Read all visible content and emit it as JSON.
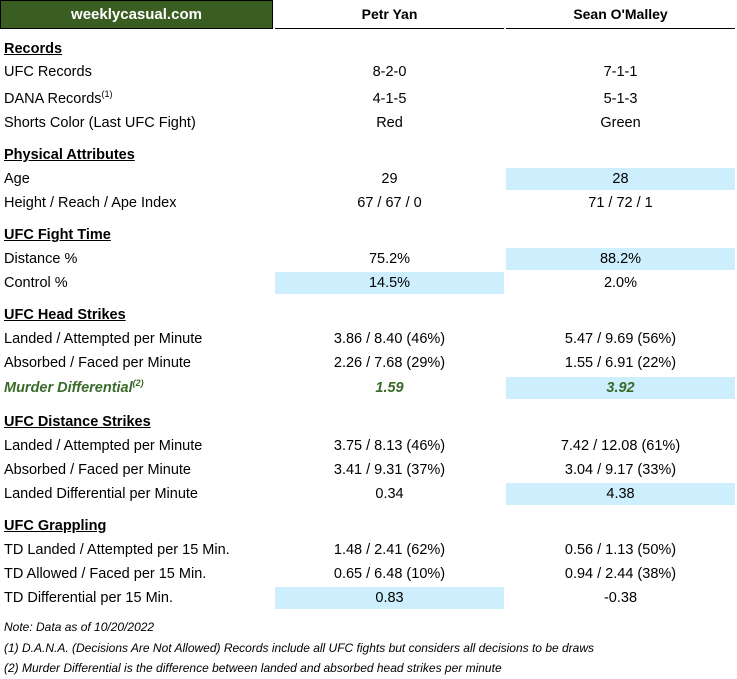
{
  "brand": "weeklycasual.com",
  "fighters": [
    "Petr Yan",
    "Sean O'Malley"
  ],
  "rows": [
    {
      "type": "section",
      "label": "Records"
    },
    {
      "type": "data",
      "label": "UFC Records",
      "sup": "",
      "v1": "8-2-0",
      "v2": "7-1-1",
      "hl": ""
    },
    {
      "type": "data",
      "label": "DANA Records",
      "sup": "(1)",
      "v1": "4-1-5",
      "v2": "5-1-3",
      "hl": ""
    },
    {
      "type": "data",
      "label": "Shorts Color (Last UFC Fight)",
      "sup": "",
      "v1": "Red",
      "v2": "Green",
      "hl": ""
    },
    {
      "type": "section",
      "label": "Physical Attributes"
    },
    {
      "type": "data",
      "label": "Age",
      "sup": "",
      "v1": "29",
      "v2": "28",
      "hl": "c2"
    },
    {
      "type": "data",
      "label": "Height / Reach / Ape Index",
      "sup": "",
      "v1": "67 / 67 / 0",
      "v2": "71 / 72 / 1",
      "hl": ""
    },
    {
      "type": "section",
      "label": "UFC Fight Time"
    },
    {
      "type": "data",
      "label": "Distance %",
      "sup": "",
      "v1": "75.2%",
      "v2": "88.2%",
      "hl": "c2"
    },
    {
      "type": "data",
      "label": "Control %",
      "sup": "",
      "v1": "14.5%",
      "v2": "2.0%",
      "hl": "c1"
    },
    {
      "type": "section",
      "label": "UFC Head Strikes"
    },
    {
      "type": "data",
      "label": "Landed / Attempted per Minute",
      "sup": "",
      "v1": "3.86 / 8.40 (46%)",
      "v2": "5.47 / 9.69 (56%)",
      "hl": ""
    },
    {
      "type": "data",
      "label": "Absorbed / Faced per Minute",
      "sup": "",
      "v1": "2.26 / 7.68 (29%)",
      "v2": "1.55 / 6.91 (22%)",
      "hl": ""
    },
    {
      "type": "data",
      "label": "Murder Differential",
      "sup": "(2)",
      "v1": "1.59",
      "v2": "3.92",
      "hl": "c2",
      "green": true
    },
    {
      "type": "section",
      "label": "UFC Distance Strikes"
    },
    {
      "type": "data",
      "label": "Landed / Attempted per Minute",
      "sup": "",
      "v1": "3.75 / 8.13 (46%)",
      "v2": "7.42 / 12.08 (61%)",
      "hl": ""
    },
    {
      "type": "data",
      "label": "Absorbed / Faced per Minute",
      "sup": "",
      "v1": "3.41 / 9.31 (37%)",
      "v2": "3.04 / 9.17 (33%)",
      "hl": ""
    },
    {
      "type": "data",
      "label": "Landed Differential per Minute",
      "sup": "",
      "v1": "0.34",
      "v2": "4.38",
      "hl": "c2"
    },
    {
      "type": "section",
      "label": "UFC Grappling"
    },
    {
      "type": "data",
      "label": "TD Landed / Attempted per 15 Min.",
      "sup": "",
      "v1": "1.48 / 2.41 (62%)",
      "v2": "0.56 / 1.13 (50%)",
      "hl": ""
    },
    {
      "type": "data",
      "label": "TD Allowed / Faced per 15 Min.",
      "sup": "",
      "v1": "0.65 / 6.48 (10%)",
      "v2": "0.94 / 2.44 (38%)",
      "hl": ""
    },
    {
      "type": "data",
      "label": "TD Differential per 15 Min.",
      "sup": "",
      "v1": "0.83",
      "v2": "-0.38",
      "hl": "c1"
    }
  ],
  "notes": [
    "Note: Data as of 10/20/2022",
    "(1) D.A.N.A. (Decisions Are Not Allowed) Records include all UFC fights but considers all decisions to be draws",
    "(2) Murder Differential is the difference between landed and absorbed head strikes per minute"
  ],
  "colors": {
    "brand_bg": "#3a5e22",
    "highlight": "#cdeefc",
    "accent_green": "#3a6b2a"
  }
}
